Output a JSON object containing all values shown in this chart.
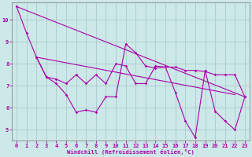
{
  "xlabel": "Windchill (Refroidissement éolien,°C)",
  "xlim": [
    -0.5,
    23.5
  ],
  "ylim": [
    4.5,
    10.8
  ],
  "yticks": [
    5,
    6,
    7,
    8,
    9,
    10
  ],
  "xticks": [
    0,
    1,
    2,
    3,
    4,
    5,
    6,
    7,
    8,
    9,
    10,
    11,
    12,
    13,
    14,
    15,
    16,
    17,
    18,
    19,
    20,
    21,
    22,
    23
  ],
  "bg_color": "#cce8e8",
  "grid_color": "#aacccc",
  "line_color": "#aa00aa",
  "lw": 0.8,
  "ms": 1.8,
  "line1_x": [
    0,
    1,
    2,
    3,
    4,
    5,
    6,
    7,
    8,
    9,
    10,
    11,
    12,
    13,
    14,
    15,
    16,
    17,
    18,
    19,
    20,
    21,
    22,
    23
  ],
  "line1_y": [
    10.6,
    9.4,
    8.3,
    7.4,
    7.1,
    6.6,
    5.8,
    5.9,
    5.8,
    6.5,
    6.5,
    8.9,
    8.5,
    7.9,
    7.8,
    7.85,
    6.7,
    5.4,
    4.65,
    7.7,
    5.85,
    5.4,
    5.0,
    6.5
  ],
  "line2_x": [
    2,
    3,
    4,
    5,
    6,
    7,
    8,
    9,
    10,
    11,
    12,
    13,
    14,
    15,
    16,
    17,
    18,
    19,
    20,
    21,
    22,
    23
  ],
  "line2_y": [
    8.3,
    7.4,
    7.3,
    7.1,
    7.5,
    7.1,
    7.5,
    7.1,
    8.0,
    7.9,
    7.1,
    7.1,
    7.9,
    7.85,
    7.85,
    7.7,
    7.7,
    7.65,
    7.5,
    7.5,
    7.5,
    6.5
  ],
  "line3_x": [
    0,
    23
  ],
  "line3_y": [
    10.6,
    6.5
  ],
  "line4_x": [
    2,
    22
  ],
  "line4_y": [
    8.3,
    6.6
  ]
}
